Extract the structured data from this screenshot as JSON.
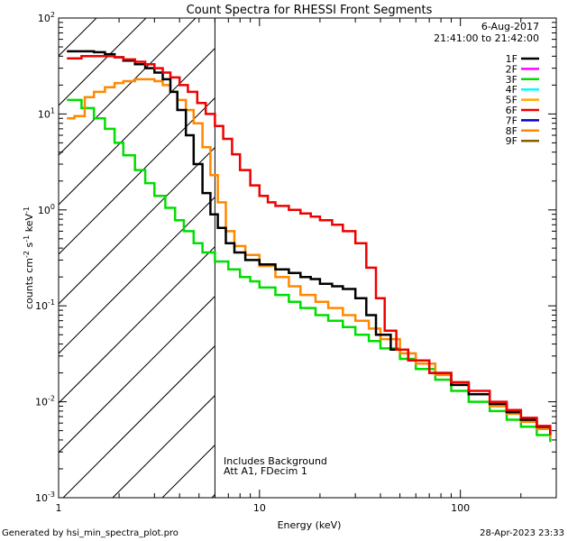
{
  "chart_data": {
    "type": "line",
    "title": "Count Spectra for RHESSI Front Segments",
    "xlabel": "Energy (keV)",
    "ylabel": {
      "base": "counts cm",
      "e1": "-2",
      "mid1": " s",
      "e2": "-1",
      "mid2": " keV",
      "e3": "-1"
    },
    "xscale": "log",
    "yscale": "log",
    "xlim": [
      1,
      300
    ],
    "ylim": [
      0.001,
      100
    ],
    "x_ticks": [
      {
        "value": 1,
        "label": "1"
      },
      {
        "value": 10,
        "label": "10"
      },
      {
        "value": 100,
        "label": "100"
      }
    ],
    "y_ticks": [
      {
        "value": 0.001,
        "base": "10",
        "exp": "-3"
      },
      {
        "value": 0.01,
        "base": "10",
        "exp": "-2"
      },
      {
        "value": 0.1,
        "base": "10",
        "exp": "-1"
      },
      {
        "value": 1,
        "base": "10",
        "exp": "0"
      },
      {
        "value": 10,
        "base": "10",
        "exp": "1"
      },
      {
        "value": 100,
        "base": "10",
        "exp": "2"
      }
    ],
    "shaded_region": {
      "x_min": 1,
      "x_max": 6,
      "style": "diagonal-hatch"
    },
    "date": "6-Aug-2017",
    "time_range": "21:41:00 to 21:42:00",
    "annotations": [
      "Includes Background",
      "Att A1, FDecim 1"
    ],
    "legend": [
      {
        "name": "1F",
        "color": "#000000"
      },
      {
        "name": "2F",
        "color": "#ff00ff"
      },
      {
        "name": "3F",
        "color": "#00dd00"
      },
      {
        "name": "4F",
        "color": "#00ffff"
      },
      {
        "name": "5F",
        "color": "#ffaa00"
      },
      {
        "name": "6F",
        "color": "#ee0000"
      },
      {
        "name": "7F",
        "color": "#0000cc"
      },
      {
        "name": "8F",
        "color": "#ff8800"
      },
      {
        "name": "9F",
        "color": "#806000"
      }
    ],
    "series": [
      {
        "name": "3F",
        "color": "#00dd00",
        "points": [
          [
            1.1,
            14
          ],
          [
            1.3,
            11.5
          ],
          [
            1.5,
            9
          ],
          [
            1.7,
            7
          ],
          [
            1.9,
            5
          ],
          [
            2.1,
            3.7
          ],
          [
            2.4,
            2.6
          ],
          [
            2.7,
            1.9
          ],
          [
            3.0,
            1.4
          ],
          [
            3.4,
            1.05
          ],
          [
            3.8,
            0.78
          ],
          [
            4.2,
            0.6
          ],
          [
            4.7,
            0.45
          ],
          [
            5.2,
            0.36
          ],
          [
            6,
            0.29
          ],
          [
            7,
            0.24
          ],
          [
            8,
            0.2
          ],
          [
            9,
            0.18
          ],
          [
            10,
            0.155
          ],
          [
            12,
            0.13
          ],
          [
            14,
            0.11
          ],
          [
            16,
            0.095
          ],
          [
            19,
            0.08
          ],
          [
            22,
            0.07
          ],
          [
            26,
            0.06
          ],
          [
            30,
            0.05
          ],
          [
            35,
            0.043
          ],
          [
            40,
            0.036
          ],
          [
            50,
            0.028
          ],
          [
            60,
            0.022
          ],
          [
            75,
            0.017
          ],
          [
            90,
            0.013
          ],
          [
            110,
            0.01
          ],
          [
            140,
            0.008
          ],
          [
            170,
            0.0065
          ],
          [
            200,
            0.0055
          ],
          [
            240,
            0.0045
          ],
          [
            280,
            0.0038
          ]
        ]
      },
      {
        "name": "8F",
        "color": "#ff8800",
        "points": [
          [
            1.1,
            9
          ],
          [
            1.2,
            9.5
          ],
          [
            1.35,
            15
          ],
          [
            1.5,
            17
          ],
          [
            1.7,
            19
          ],
          [
            1.9,
            21
          ],
          [
            2.1,
            22
          ],
          [
            2.4,
            23
          ],
          [
            2.7,
            23
          ],
          [
            3.0,
            22
          ],
          [
            3.3,
            20
          ],
          [
            3.6,
            17
          ],
          [
            3.9,
            14
          ],
          [
            4.3,
            11
          ],
          [
            4.7,
            8
          ],
          [
            5.2,
            4.5
          ],
          [
            5.7,
            2.3
          ],
          [
            6.2,
            1.2
          ],
          [
            6.8,
            0.6
          ],
          [
            7.5,
            0.42
          ],
          [
            8.5,
            0.34
          ],
          [
            10,
            0.26
          ],
          [
            12,
            0.2
          ],
          [
            14,
            0.16
          ],
          [
            16,
            0.13
          ],
          [
            19,
            0.11
          ],
          [
            22,
            0.095
          ],
          [
            26,
            0.08
          ],
          [
            30,
            0.07
          ],
          [
            35,
            0.058
          ],
          [
            40,
            0.045
          ],
          [
            50,
            0.032
          ],
          [
            60,
            0.025
          ],
          [
            75,
            0.019
          ],
          [
            90,
            0.015
          ],
          [
            110,
            0.012
          ],
          [
            140,
            0.009
          ],
          [
            170,
            0.0075
          ],
          [
            200,
            0.0062
          ],
          [
            240,
            0.0052
          ],
          [
            280,
            0.0042
          ]
        ]
      },
      {
        "name": "1F",
        "color": "#000000",
        "points": [
          [
            1.1,
            45
          ],
          [
            1.3,
            45
          ],
          [
            1.5,
            44
          ],
          [
            1.7,
            42
          ],
          [
            1.9,
            39
          ],
          [
            2.1,
            36
          ],
          [
            2.4,
            33
          ],
          [
            2.7,
            30
          ],
          [
            3.0,
            27
          ],
          [
            3.3,
            23
          ],
          [
            3.6,
            17
          ],
          [
            3.9,
            11
          ],
          [
            4.3,
            6
          ],
          [
            4.7,
            3
          ],
          [
            5.2,
            1.5
          ],
          [
            5.7,
            0.9
          ],
          [
            6.2,
            0.65
          ],
          [
            6.8,
            0.45
          ],
          [
            7.5,
            0.36
          ],
          [
            8.5,
            0.3
          ],
          [
            10,
            0.27
          ],
          [
            12,
            0.24
          ],
          [
            14,
            0.22
          ],
          [
            16,
            0.2
          ],
          [
            18,
            0.19
          ],
          [
            20,
            0.17
          ],
          [
            23,
            0.16
          ],
          [
            26,
            0.15
          ],
          [
            30,
            0.12
          ],
          [
            34,
            0.08
          ],
          [
            38,
            0.05
          ],
          [
            45,
            0.035
          ],
          [
            55,
            0.027
          ],
          [
            70,
            0.02
          ],
          [
            90,
            0.015
          ],
          [
            110,
            0.012
          ],
          [
            140,
            0.0095
          ],
          [
            170,
            0.0078
          ],
          [
            200,
            0.0065
          ],
          [
            240,
            0.0055
          ],
          [
            280,
            0.0045
          ]
        ]
      },
      {
        "name": "6F",
        "color": "#ee0000",
        "points": [
          [
            1.1,
            38
          ],
          [
            1.3,
            40
          ],
          [
            1.5,
            40
          ],
          [
            1.7,
            40
          ],
          [
            1.9,
            39
          ],
          [
            2.1,
            37
          ],
          [
            2.4,
            35
          ],
          [
            2.7,
            33
          ],
          [
            3.0,
            30
          ],
          [
            3.3,
            27
          ],
          [
            3.6,
            24
          ],
          [
            4.0,
            20
          ],
          [
            4.4,
            17
          ],
          [
            4.9,
            13
          ],
          [
            5.4,
            10
          ],
          [
            6.0,
            7.5
          ],
          [
            6.6,
            5.5
          ],
          [
            7.3,
            3.8
          ],
          [
            8.0,
            2.6
          ],
          [
            9,
            1.8
          ],
          [
            10,
            1.4
          ],
          [
            11,
            1.2
          ],
          [
            12,
            1.1
          ],
          [
            14,
            1.0
          ],
          [
            16,
            0.92
          ],
          [
            18,
            0.85
          ],
          [
            20,
            0.78
          ],
          [
            23,
            0.7
          ],
          [
            26,
            0.6
          ],
          [
            30,
            0.45
          ],
          [
            34,
            0.25
          ],
          [
            38,
            0.12
          ],
          [
            42,
            0.055
          ],
          [
            48,
            0.035
          ],
          [
            55,
            0.027
          ],
          [
            70,
            0.02
          ],
          [
            90,
            0.016
          ],
          [
            110,
            0.013
          ],
          [
            140,
            0.01
          ],
          [
            170,
            0.0082
          ],
          [
            200,
            0.0068
          ],
          [
            240,
            0.0056
          ],
          [
            280,
            0.0045
          ]
        ]
      }
    ]
  }
}
